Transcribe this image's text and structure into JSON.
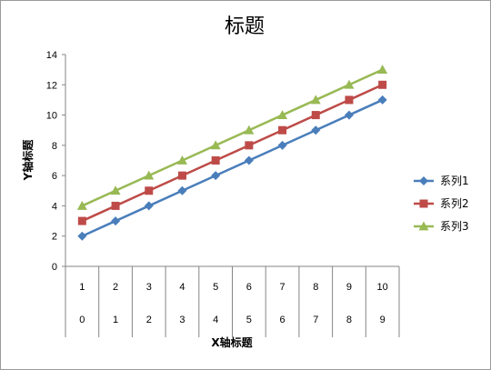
{
  "chart_data": {
    "type": "line",
    "title": "标题",
    "xlabel": "X轴标题",
    "ylabel": "Y轴标题",
    "ylim": [
      0,
      14
    ],
    "yticks": [
      0,
      2,
      4,
      6,
      8,
      10,
      12,
      14
    ],
    "grid": false,
    "legend_position": "right",
    "categories_level1": [
      "1",
      "2",
      "3",
      "4",
      "5",
      "6",
      "7",
      "8",
      "9",
      "10"
    ],
    "categories_level2": [
      "0",
      "1",
      "2",
      "3",
      "4",
      "5",
      "6",
      "7",
      "8",
      "9"
    ],
    "series": [
      {
        "name": "系列1",
        "values": [
          2,
          3,
          4,
          5,
          6,
          7,
          8,
          9,
          10,
          11
        ],
        "color": "#4a7ebb",
        "marker": "diamond"
      },
      {
        "name": "系列2",
        "values": [
          3,
          4,
          5,
          6,
          7,
          8,
          9,
          10,
          11,
          12
        ],
        "color": "#be4b48",
        "marker": "square"
      },
      {
        "name": "系列3",
        "values": [
          4,
          5,
          6,
          7,
          8,
          9,
          10,
          11,
          12,
          13
        ],
        "color": "#98b954",
        "marker": "triangle"
      }
    ]
  }
}
